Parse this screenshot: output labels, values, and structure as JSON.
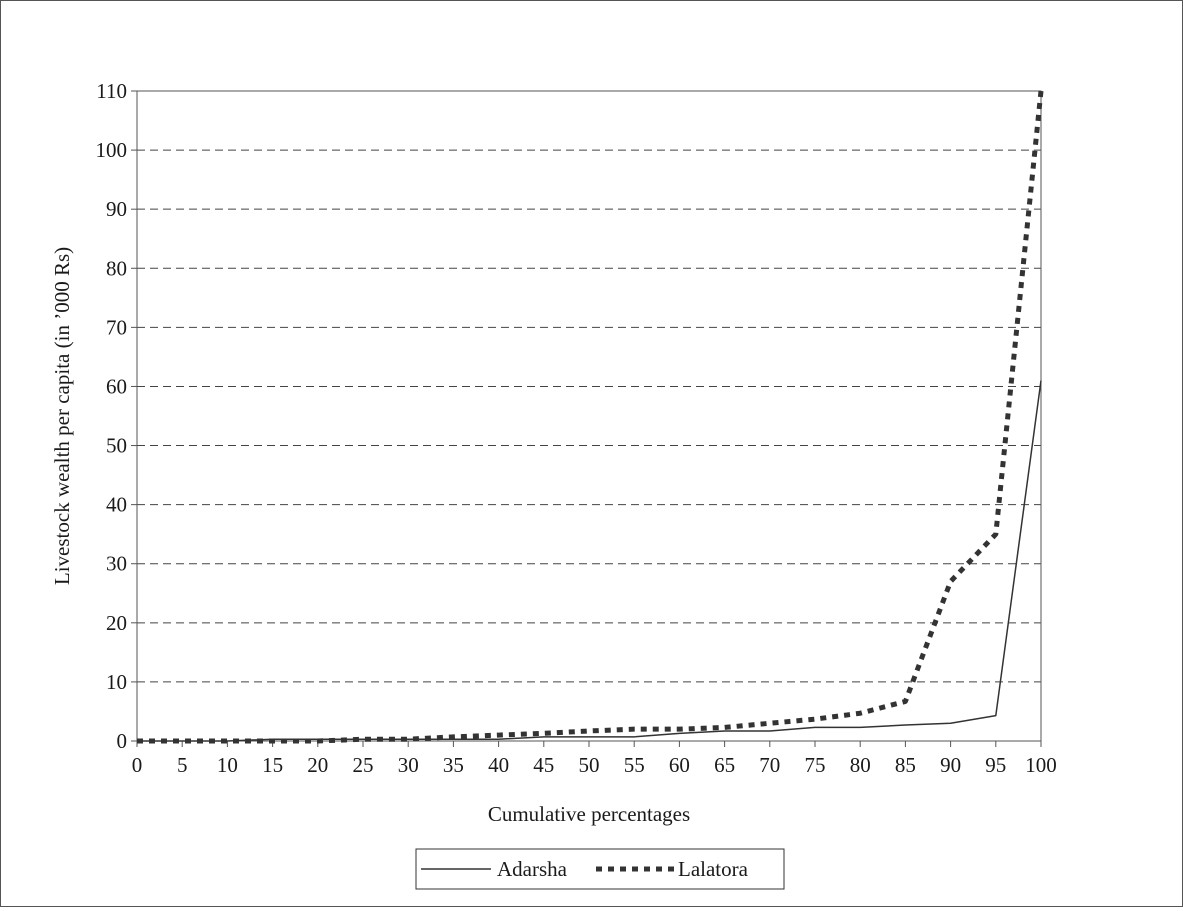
{
  "chart_data": {
    "type": "line",
    "title": "",
    "xlabel": "Cumulative percentages",
    "ylabel": "Livestock wealth per capita (in ’000 Rs)",
    "x": [
      0,
      5,
      10,
      15,
      20,
      25,
      30,
      35,
      40,
      45,
      50,
      55,
      60,
      65,
      70,
      75,
      80,
      85,
      90,
      95,
      100
    ],
    "xlim": [
      0,
      100
    ],
    "ylim": [
      0,
      110
    ],
    "x_ticks": [
      "0",
      "5",
      "10",
      "15",
      "20",
      "25",
      "30",
      "35",
      "40",
      "45",
      "50",
      "55",
      "60",
      "65",
      "70",
      "75",
      "80",
      "85",
      "90",
      "95",
      "100"
    ],
    "y_ticks": [
      "0",
      "10",
      "20",
      "30",
      "40",
      "50",
      "60",
      "70",
      "80",
      "90",
      "100",
      "110"
    ],
    "grid": "horizontal dashed",
    "legend_position": "bottom-center",
    "series": [
      {
        "name": "Adarsha",
        "style": "solid",
        "color": "#333333",
        "values": [
          0,
          0,
          0,
          0.3,
          0.3,
          0.3,
          0.3,
          0.3,
          0.3,
          0.7,
          0.7,
          0.7,
          1.3,
          1.7,
          1.7,
          2.3,
          2.3,
          2.7,
          3.0,
          4.3,
          61.0
        ]
      },
      {
        "name": "Lalatora",
        "style": "dotted",
        "color": "#333333",
        "values": [
          0,
          0,
          0,
          0,
          0,
          0.3,
          0.3,
          0.7,
          1.0,
          1.3,
          1.7,
          2.0,
          2.0,
          2.3,
          3.0,
          3.7,
          4.7,
          6.7,
          27.0,
          35.0,
          110.0
        ]
      }
    ]
  }
}
